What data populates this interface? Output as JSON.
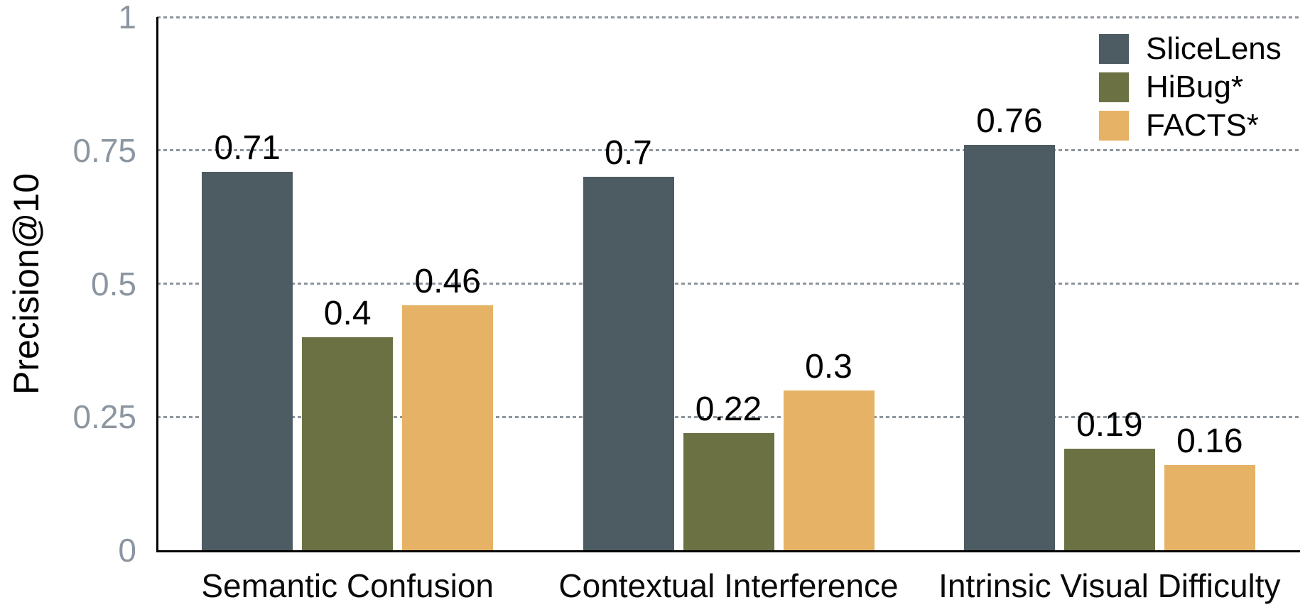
{
  "chart_data": {
    "type": "bar",
    "title": "",
    "xlabel": "",
    "ylabel": "Precision@10",
    "categories": [
      "Semantic Confusion",
      "Contextual Interference",
      "Intrinsic Visual Difficulty"
    ],
    "series": [
      {
        "name": "SliceLens",
        "color": "#4d5c62",
        "values": [
          0.71,
          0.7,
          0.76
        ],
        "labels": [
          "0.71",
          "0.7",
          "0.76"
        ]
      },
      {
        "name": "HiBug*",
        "color": "#6c7144",
        "values": [
          0.4,
          0.22,
          0.19
        ],
        "labels": [
          "0.4",
          "0.22",
          "0.19"
        ]
      },
      {
        "name": "FACTS*",
        "color": "#e6b265",
        "values": [
          0.46,
          0.3,
          0.16
        ],
        "labels": [
          "0.46",
          "0.3",
          "0.16"
        ]
      }
    ],
    "ylim": [
      0,
      1
    ],
    "yticks": [
      {
        "value": 0,
        "label": "0"
      },
      {
        "value": 0.25,
        "label": "0.25"
      },
      {
        "value": 0.5,
        "label": "0.5"
      },
      {
        "value": 0.75,
        "label": "0.75"
      },
      {
        "value": 1,
        "label": "1"
      }
    ],
    "grid": "horizontal-dashed",
    "legend_position": "top-right",
    "colors": {
      "axis": "#000000",
      "tick_label": "#8c96a1",
      "gridline": "#8e959c",
      "value_label": "#000000",
      "background": "#ffffff"
    }
  }
}
